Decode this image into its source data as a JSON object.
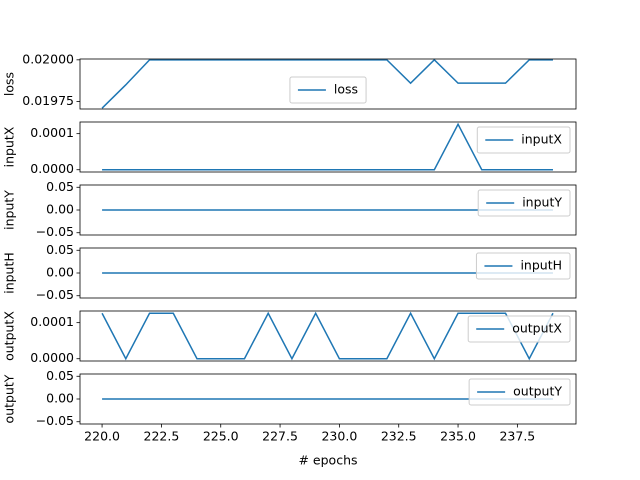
{
  "chart_data": [
    {
      "type": "line",
      "ylabel": "loss",
      "x": [
        220,
        221,
        222,
        223,
        224,
        225,
        226,
        227,
        228,
        229,
        230,
        231,
        232,
        233,
        234,
        235,
        236,
        237,
        238,
        239
      ],
      "xlim": [
        219.07,
        239.97
      ],
      "series": [
        {
          "name": "loss",
          "color": "#1f77b4",
          "values": [
            0.01971,
            0.01985,
            0.02,
            0.02,
            0.02,
            0.02,
            0.02,
            0.02,
            0.02,
            0.02,
            0.02,
            0.02,
            0.02,
            0.01986,
            0.02,
            0.01986,
            0.01986,
            0.01986,
            0.02,
            0.02
          ]
        }
      ],
      "ylim": [
        0.019705,
        0.020005
      ],
      "yticks": [
        {
          "value": 0.01975,
          "label": "0.01975"
        },
        {
          "value": 0.02,
          "label": "0.02000"
        }
      ],
      "legend": "center"
    },
    {
      "type": "line",
      "ylabel": "inputX",
      "x": [
        220,
        221,
        222,
        223,
        224,
        225,
        226,
        227,
        228,
        229,
        230,
        231,
        232,
        233,
        234,
        235,
        236,
        237,
        238,
        239
      ],
      "xlim": [
        219.07,
        239.97
      ],
      "series": [
        {
          "name": "inputX",
          "color": "#1f77b4",
          "values": [
            0,
            0,
            0,
            0,
            0,
            0,
            0,
            0,
            0,
            0,
            0,
            0,
            0,
            0,
            0,
            0.000126,
            0,
            0,
            0,
            0
          ]
        }
      ],
      "ylim": [
        -6.3e-06,
        0.0001323
      ],
      "yticks": [
        {
          "value": 0,
          "label": "0.0000"
        },
        {
          "value": 0.0001,
          "label": "0.0001"
        }
      ],
      "legend": "upper right"
    },
    {
      "type": "line",
      "ylabel": "inputY",
      "x": [
        220,
        221,
        222,
        223,
        224,
        225,
        226,
        227,
        228,
        229,
        230,
        231,
        232,
        233,
        234,
        235,
        236,
        237,
        238,
        239
      ],
      "xlim": [
        219.07,
        239.97
      ],
      "series": [
        {
          "name": "inputY",
          "color": "#1f77b4",
          "values": [
            0,
            0,
            0,
            0,
            0,
            0,
            0,
            0,
            0,
            0,
            0,
            0,
            0,
            0,
            0,
            0,
            0,
            0,
            0,
            0
          ]
        }
      ],
      "ylim": [
        -0.055,
        0.055
      ],
      "yticks": [
        {
          "value": -0.05,
          "label": "−0.05"
        },
        {
          "value": 0,
          "label": "0.00"
        },
        {
          "value": 0.05,
          "label": "0.05"
        }
      ],
      "legend": "upper right"
    },
    {
      "type": "line",
      "ylabel": "inputH",
      "x": [
        220,
        221,
        222,
        223,
        224,
        225,
        226,
        227,
        228,
        229,
        230,
        231,
        232,
        233,
        234,
        235,
        236,
        237,
        238,
        239
      ],
      "xlim": [
        219.07,
        239.97
      ],
      "series": [
        {
          "name": "inputH",
          "color": "#1f77b4",
          "values": [
            0,
            0,
            0,
            0,
            0,
            0,
            0,
            0,
            0,
            0,
            0,
            0,
            0,
            0,
            0,
            0,
            0,
            0,
            0,
            0
          ]
        }
      ],
      "ylim": [
        -0.055,
        0.055
      ],
      "yticks": [
        {
          "value": -0.05,
          "label": "−0.05"
        },
        {
          "value": 0,
          "label": "0.00"
        },
        {
          "value": 0.05,
          "label": "0.05"
        }
      ],
      "legend": "upper right"
    },
    {
      "type": "line",
      "ylabel": "outputX",
      "x": [
        220,
        221,
        222,
        223,
        224,
        225,
        226,
        227,
        228,
        229,
        230,
        231,
        232,
        233,
        234,
        235,
        236,
        237,
        238,
        239
      ],
      "xlim": [
        219.07,
        239.97
      ],
      "series": [
        {
          "name": "outputX",
          "color": "#1f77b4",
          "values": [
            0.000126,
            0,
            0.000126,
            0.000126,
            0,
            0,
            0,
            0.000126,
            0,
            0.000126,
            0,
            0,
            0,
            0.000126,
            0,
            0.000126,
            0.000126,
            0.000126,
            0,
            0.000126
          ]
        }
      ],
      "ylim": [
        -6.3e-06,
        0.0001323
      ],
      "yticks": [
        {
          "value": 0,
          "label": "0.0000"
        },
        {
          "value": 0.0001,
          "label": "0.0001"
        }
      ],
      "legend": "upper right"
    },
    {
      "type": "line",
      "ylabel": "outputY",
      "xlabel": "# epochs",
      "x": [
        220,
        221,
        222,
        223,
        224,
        225,
        226,
        227,
        228,
        229,
        230,
        231,
        232,
        233,
        234,
        235,
        236,
        237,
        238,
        239
      ],
      "xlim": [
        219.07,
        239.97
      ],
      "xticks": [
        {
          "value": 220,
          "label": "220.0"
        },
        {
          "value": 222.5,
          "label": "222.5"
        },
        {
          "value": 225,
          "label": "225.0"
        },
        {
          "value": 227.5,
          "label": "227.5"
        },
        {
          "value": 230,
          "label": "230.0"
        },
        {
          "value": 232.5,
          "label": "232.5"
        },
        {
          "value": 235,
          "label": "235.0"
        },
        {
          "value": 237.5,
          "label": "237.5"
        }
      ],
      "series": [
        {
          "name": "outputY",
          "color": "#1f77b4",
          "values": [
            0,
            0,
            0,
            0,
            0,
            0,
            0,
            0,
            0,
            0,
            0,
            0,
            0,
            0,
            0,
            0,
            0,
            0,
            0,
            0
          ]
        }
      ],
      "ylim": [
        -0.055,
        0.055
      ],
      "yticks": [
        {
          "value": -0.05,
          "label": "−0.05"
        },
        {
          "value": 0,
          "label": "0.00"
        },
        {
          "value": 0.05,
          "label": "0.05"
        }
      ],
      "legend": "upper right"
    }
  ]
}
